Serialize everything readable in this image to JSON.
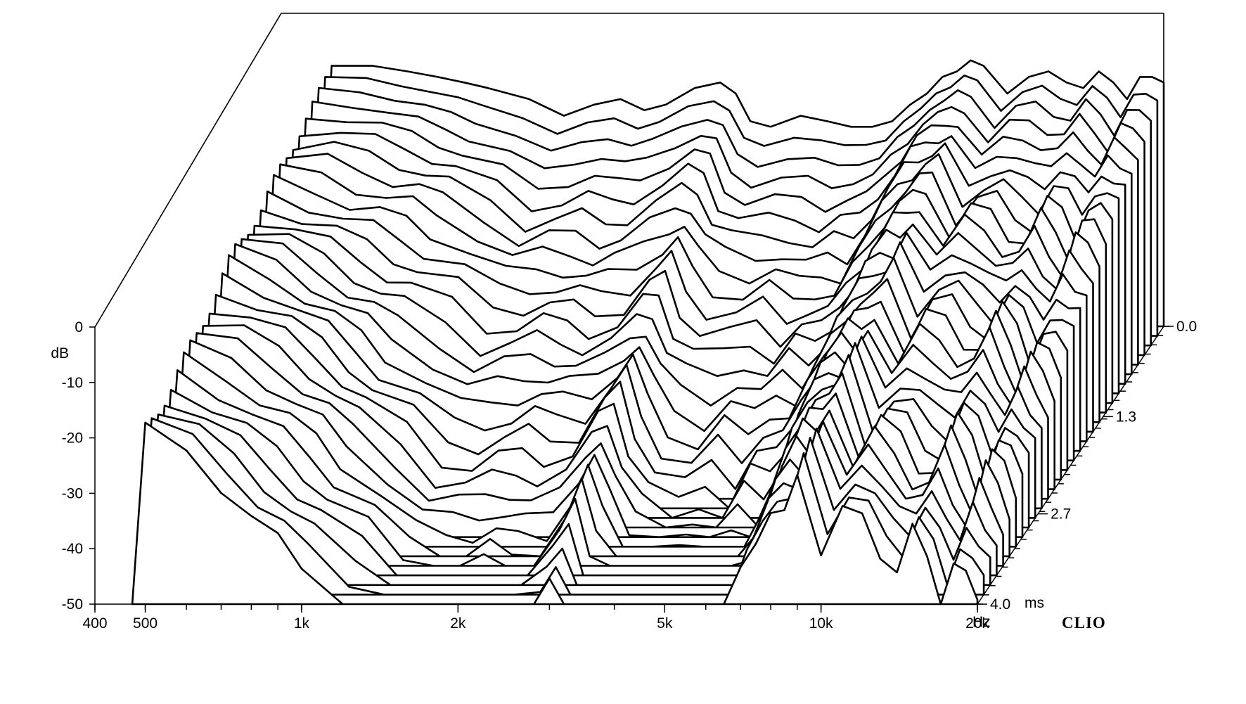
{
  "chart_data": {
    "type": "waterfall",
    "brand": "CLIO",
    "xlabel": "Hz",
    "ylabel": "dB",
    "zlabel": "ms",
    "x_scale": "log",
    "xlim": [
      400,
      20000
    ],
    "ylim": [
      -50,
      0
    ],
    "zlim": [
      0.0,
      4.0
    ],
    "grid": false,
    "x_ticks": [
      {
        "value": 400,
        "label": "400"
      },
      {
        "value": 500,
        "label": "500"
      },
      {
        "value": 1000,
        "label": "1k"
      },
      {
        "value": 2000,
        "label": "2k"
      },
      {
        "value": 5000,
        "label": "5k"
      },
      {
        "value": 10000,
        "label": "10k"
      },
      {
        "value": 20000,
        "label": "20k"
      }
    ],
    "y_ticks": [
      {
        "value": 0,
        "label": "0"
      },
      {
        "value": -10,
        "label": "-10"
      },
      {
        "value": -20,
        "label": "-20"
      },
      {
        "value": -30,
        "label": "-30"
      },
      {
        "value": -40,
        "label": "-40"
      },
      {
        "value": -50,
        "label": "-50"
      }
    ],
    "z_ticks": [
      {
        "value": 0.0,
        "label": "0.0"
      },
      {
        "value": 1.3,
        "label": "1.3"
      },
      {
        "value": 2.7,
        "label": "2.7"
      },
      {
        "value": 4.0,
        "label": "4.0"
      }
    ],
    "slice_count": 30,
    "freq_points": [
      500,
      600,
      700,
      800,
      900,
      1000,
      1200,
      1400,
      1600,
      1800,
      2000,
      2200,
      2500,
      2800,
      3000,
      3200,
      3500,
      4000,
      4500,
      5000,
      5500,
      6000,
      6500,
      7000,
      7500,
      8000,
      8500,
      9000,
      10000,
      11000,
      12000,
      13000,
      14000,
      15000,
      16000,
      17000,
      18000,
      19000,
      20000
    ],
    "initial_response_db": [
      -3,
      -3,
      -4,
      -5,
      -6,
      -7,
      -9,
      -12,
      -10,
      -9,
      -11,
      -10,
      -7,
      -6,
      -8,
      -13,
      -14,
      -12,
      -13,
      -14,
      -14,
      -13,
      -10,
      -8,
      -5,
      -4,
      -2,
      -3,
      -8,
      -5,
      -4,
      -6,
      -7,
      -4,
      -6,
      -9,
      -5,
      -5,
      -6
    ],
    "decay_db_per_ms": [
      4,
      5,
      6,
      7,
      8,
      9,
      10,
      11,
      12,
      12,
      11,
      12,
      13,
      11,
      9,
      10,
      12,
      14,
      12,
      13,
      11,
      12,
      11,
      9,
      8,
      7,
      8,
      6,
      8,
      7,
      8,
      9,
      9,
      8,
      9,
      10,
      9,
      10,
      11
    ]
  }
}
